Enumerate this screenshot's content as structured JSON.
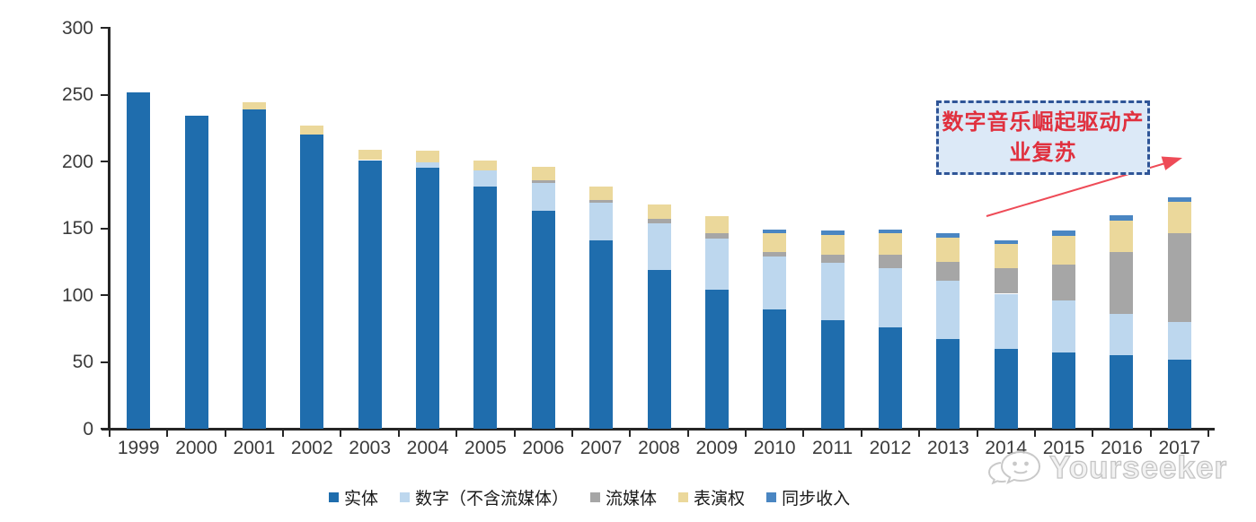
{
  "chart_data": {
    "type": "bar",
    "stacked": true,
    "title": "",
    "xlabel": "",
    "ylabel": "",
    "categories": [
      "1999",
      "2000",
      "2001",
      "2002",
      "2003",
      "2004",
      "2005",
      "2006",
      "2007",
      "2008",
      "2009",
      "2010",
      "2011",
      "2012",
      "2013",
      "2014",
      "2015",
      "2016",
      "2017"
    ],
    "series": [
      {
        "name": "实体",
        "color": "#1F6DAD",
        "values": [
          252,
          234,
          239,
          220,
          201,
          195,
          181,
          163,
          141,
          119,
          104,
          89,
          81,
          76,
          67,
          60,
          57,
          55,
          52
        ]
      },
      {
        "name": "数字（不含流媒体）",
        "color": "#BDD7EE",
        "values": [
          0,
          0,
          0,
          0,
          0,
          4,
          12,
          21,
          28,
          35,
          38,
          40,
          43,
          44,
          44,
          41,
          39,
          31,
          28
        ]
      },
      {
        "name": "流媒体",
        "color": "#A6A6A6",
        "values": [
          0,
          0,
          0,
          0,
          0,
          0,
          0,
          2,
          2,
          3,
          4,
          3,
          6,
          10,
          14,
          19,
          27,
          46,
          66
        ]
      },
      {
        "name": "表演权",
        "color": "#EBD89B",
        "values": [
          0,
          0,
          5,
          7,
          8,
          9,
          8,
          10,
          10,
          11,
          13,
          14,
          15,
          16,
          18,
          18,
          21,
          24,
          24
        ]
      },
      {
        "name": "同步收入",
        "color": "#4A86C2",
        "values": [
          0,
          0,
          0,
          0,
          0,
          0,
          0,
          0,
          0,
          0,
          0,
          3,
          3,
          3,
          3,
          3,
          4,
          4,
          3
        ]
      }
    ],
    "ylim": [
      0,
      300
    ],
    "yticks": [
      0,
      50,
      100,
      150,
      200,
      250,
      300
    ],
    "grid": false,
    "legend_position": "bottom"
  },
  "annotation": {
    "text": "数字音乐崛起驱动产业复苏",
    "text_color": "#E0303E",
    "box_fill": "#DCE9F7",
    "border_color": "#2F5597",
    "arrow_color": "#EE4B57"
  },
  "watermark": {
    "text": "Yourseeker",
    "icon": "wechat-bubbles-icon"
  },
  "axis": {
    "color": "#262626",
    "label_color": "#3b3b3b"
  }
}
